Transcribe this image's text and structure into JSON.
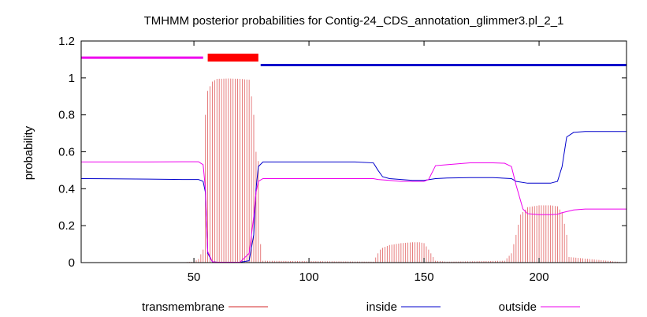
{
  "chart_data": {
    "type": "line",
    "title": "TMHMM posterior probabilities for Contig-24_CDS_annotation_glimmer3.pl_2_1",
    "xlabel": "",
    "ylabel": "probability",
    "xlim": [
      1,
      238
    ],
    "ylim": [
      0,
      1.2
    ],
    "x_ticks": [
      50,
      100,
      150,
      200
    ],
    "y_ticks": [
      0,
      0.2,
      0.4,
      0.6,
      0.8,
      1,
      1.2
    ],
    "y_tick_labels": [
      "0",
      "0.2",
      "0.4",
      "0.6",
      "0.8",
      "1",
      "1.2"
    ],
    "grid": false,
    "legend": {
      "placement": "bottom",
      "entries": [
        "transmembrane",
        "inside",
        "outside"
      ]
    },
    "colors": {
      "transmembrane": "#d62728",
      "inside": "#0000cc",
      "outside": "#ee00ee",
      "tm_bar": "#ff0000",
      "inside_bar": "#0000cc",
      "outside_bar": "#ee00ee"
    },
    "topology": [
      {
        "type": "outside",
        "start": 1,
        "end": 54,
        "y": 1.11
      },
      {
        "type": "transmembrane",
        "start": 56,
        "end": 78,
        "y": 1.11
      },
      {
        "type": "inside",
        "start": 79,
        "end": 238,
        "y": 1.07
      }
    ],
    "series": [
      {
        "name": "inside",
        "x": [
          1,
          30,
          45,
          52,
          54,
          55,
          56,
          58,
          60,
          65,
          70,
          74,
          76,
          77,
          78,
          80,
          90,
          100,
          110,
          120,
          128,
          130,
          132,
          135,
          140,
          145,
          150,
          155,
          160,
          170,
          180,
          188,
          190,
          195,
          200,
          205,
          208,
          210,
          212,
          215,
          220,
          230,
          238
        ],
        "y": [
          0.455,
          0.452,
          0.45,
          0.45,
          0.44,
          0.38,
          0.05,
          0.005,
          0.002,
          0.002,
          0.002,
          0.01,
          0.15,
          0.4,
          0.52,
          0.545,
          0.545,
          0.545,
          0.545,
          0.545,
          0.54,
          0.5,
          0.465,
          0.455,
          0.45,
          0.445,
          0.445,
          0.455,
          0.458,
          0.46,
          0.46,
          0.455,
          0.44,
          0.43,
          0.43,
          0.43,
          0.44,
          0.52,
          0.68,
          0.705,
          0.71,
          0.71,
          0.71
        ]
      },
      {
        "name": "outside",
        "x": [
          1,
          30,
          45,
          52,
          54,
          55,
          56,
          58,
          60,
          65,
          70,
          74,
          76,
          77,
          78,
          80,
          90,
          100,
          110,
          120,
          128,
          130,
          135,
          140,
          145,
          150,
          152,
          154,
          155,
          160,
          170,
          180,
          185,
          188,
          190,
          193,
          195,
          200,
          205,
          208,
          210,
          215,
          220,
          230,
          238
        ],
        "y": [
          0.545,
          0.545,
          0.546,
          0.546,
          0.53,
          0.4,
          0.06,
          0.005,
          0.002,
          0.002,
          0.002,
          0.05,
          0.25,
          0.38,
          0.44,
          0.455,
          0.455,
          0.455,
          0.455,
          0.455,
          0.455,
          0.45,
          0.445,
          0.44,
          0.44,
          0.44,
          0.45,
          0.5,
          0.525,
          0.53,
          0.54,
          0.54,
          0.538,
          0.52,
          0.42,
          0.29,
          0.265,
          0.26,
          0.26,
          0.262,
          0.27,
          0.285,
          0.29,
          0.29,
          0.29
        ]
      },
      {
        "name": "transmembrane",
        "x": [
          1,
          30,
          40,
          45,
          50,
          52,
          54,
          55,
          56,
          58,
          60,
          65,
          70,
          74,
          75,
          76,
          77,
          78,
          79,
          80,
          128,
          130,
          131,
          132,
          135,
          140,
          145,
          148,
          150,
          152,
          155,
          160,
          185,
          188,
          190,
          192,
          195,
          200,
          205,
          208,
          210,
          212,
          213,
          238
        ],
        "y": [
          0,
          0,
          0.001,
          0.002,
          0.005,
          0.02,
          0.07,
          0.8,
          0.93,
          0.98,
          0.995,
          0.997,
          0.995,
          0.99,
          0.9,
          0.8,
          0.6,
          0.55,
          0.1,
          0.01,
          0.005,
          0.05,
          0.07,
          0.08,
          0.095,
          0.105,
          0.11,
          0.11,
          0.105,
          0.07,
          0.01,
          0.005,
          0.01,
          0.05,
          0.15,
          0.26,
          0.3,
          0.31,
          0.31,
          0.305,
          0.27,
          0.15,
          0.03,
          0
        ]
      }
    ]
  }
}
